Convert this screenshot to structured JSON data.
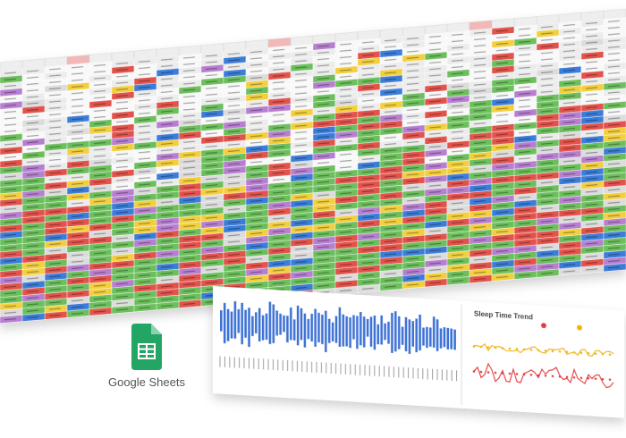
{
  "logo": {
    "label": "Google Sheets"
  },
  "trend_panel": {
    "title": "Sleep Time Trend"
  }
}
